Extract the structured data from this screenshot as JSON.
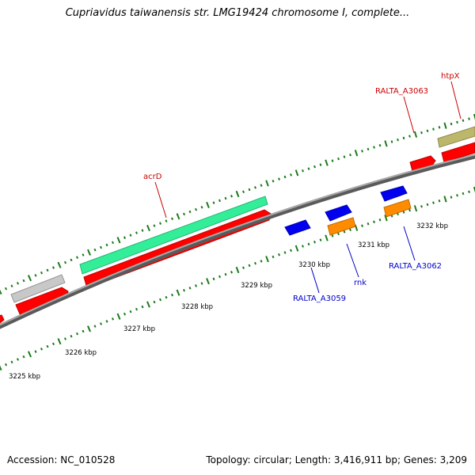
{
  "title": "Cupriavidus taiwanensis str. LMG19424 chromosome I, complete...",
  "footer": {
    "accession": "Accession: NC_010528",
    "topology": "Topology: circular; Length: 3,416,911 bp; Genes: 3,209"
  },
  "colors": {
    "backbone": "#7a7a7a",
    "tick": "#1a7a1a",
    "forward_label": "#cc0000",
    "reverse_label": "#0000cc"
  },
  "scale": {
    "labels": [
      "3225 kbp",
      "3226 kbp",
      "3227 kbp",
      "3228 kbp",
      "3229 kbp",
      "3230 kbp",
      "3231 kbp",
      "3232 kbp"
    ]
  },
  "features": [
    {
      "id": "f-gray-1",
      "strand": "forward",
      "color": "#c8c8c8",
      "shape": "bar"
    },
    {
      "id": "f-red-1",
      "strand": "forward",
      "color": "#ff0000",
      "shape": "arrow-right"
    },
    {
      "id": "f-red-edge",
      "strand": "forward",
      "color": "#ff0000",
      "shape": "arrow-right"
    },
    {
      "id": "f-green-1",
      "strand": "forward",
      "color": "#33ee99",
      "shape": "bar"
    },
    {
      "id": "f-red-acrD",
      "strand": "forward",
      "color": "#ff0000",
      "shape": "arrow-right"
    },
    {
      "id": "f-red-3063",
      "strand": "forward",
      "color": "#ff0000",
      "shape": "arrow-right"
    },
    {
      "id": "f-olive-1",
      "strand": "forward",
      "color": "#bdb76b",
      "shape": "bar"
    },
    {
      "id": "f-red-htpX",
      "strand": "forward",
      "color": "#ff0000",
      "shape": "bar"
    },
    {
      "id": "f-blue-3059",
      "strand": "reverse",
      "color": "#0000ee",
      "shape": "arrow-left"
    },
    {
      "id": "f-blue-rnk",
      "strand": "reverse",
      "color": "#0000ee",
      "shape": "arrow-left"
    },
    {
      "id": "f-orange-rnk",
      "strand": "reverse",
      "color": "#ff8c00",
      "shape": "bar"
    },
    {
      "id": "f-blue-3062",
      "strand": "reverse",
      "color": "#0000ee",
      "shape": "arrow-left"
    },
    {
      "id": "f-orange-3062",
      "strand": "reverse",
      "color": "#ff8c00",
      "shape": "bar"
    }
  ],
  "labels": [
    {
      "id": "acrD",
      "text": "acrD",
      "strand": "forward"
    },
    {
      "id": "RALTA_A3063",
      "text": "RALTA_A3063",
      "strand": "forward"
    },
    {
      "id": "htpX",
      "text": "htpX",
      "strand": "forward"
    },
    {
      "id": "RALTA_A3059",
      "text": "RALTA_A3059",
      "strand": "reverse"
    },
    {
      "id": "rnk",
      "text": "rnk",
      "strand": "reverse"
    },
    {
      "id": "RALTA_A3062",
      "text": "RALTA_A3062",
      "strand": "reverse"
    }
  ]
}
